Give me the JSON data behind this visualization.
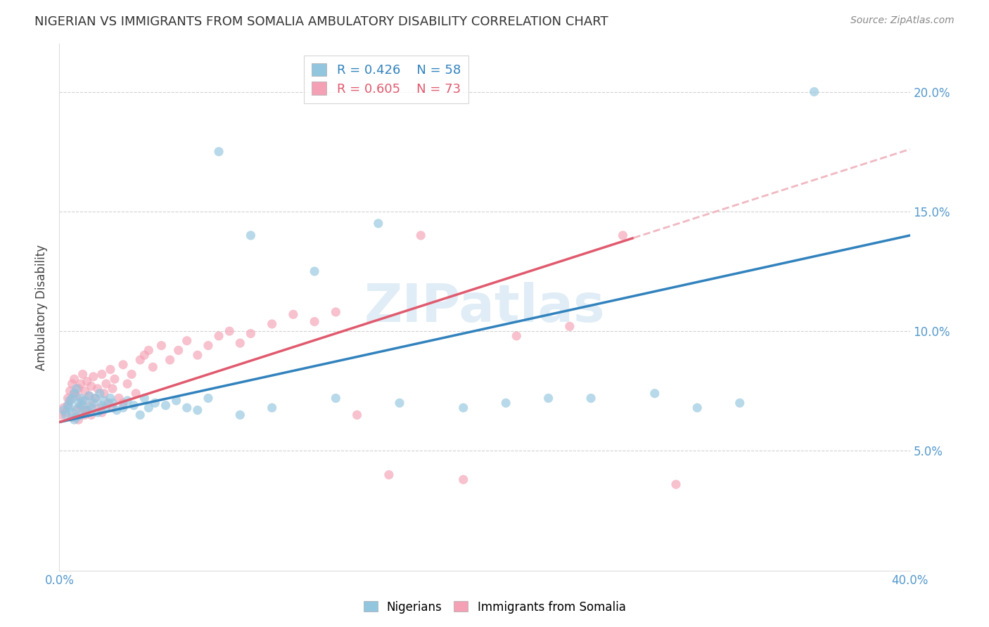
{
  "title": "NIGERIAN VS IMMIGRANTS FROM SOMALIA AMBULATORY DISABILITY CORRELATION CHART",
  "source": "Source: ZipAtlas.com",
  "ylabel": "Ambulatory Disability",
  "watermark": "ZIPatlas",
  "xmin": 0.0,
  "xmax": 0.4,
  "ymin": 0.0,
  "ymax": 0.22,
  "nigerians_R": 0.426,
  "nigerians_N": 58,
  "somalia_R": 0.605,
  "somalia_N": 73,
  "blue_scatter_color": "#92c5de",
  "pink_scatter_color": "#f4a0b5",
  "blue_line_color": "#3182bd",
  "pink_line_color": "#e05a6e",
  "blue_dash_color": "#b0cfe8",
  "pink_dash_color": "#f0b8c2",
  "axis_tick_color": "#5599cc",
  "grid_color": "#cccccc",
  "title_color": "#333333",
  "watermark_color": "#c8dff0",
  "nigeria_intercept": 0.062,
  "nigeria_slope": 0.2,
  "somalia_intercept": 0.062,
  "somalia_slope": 0.3,
  "nigeria_x": [
    0.002,
    0.003,
    0.004,
    0.005,
    0.005,
    0.006,
    0.006,
    0.007,
    0.007,
    0.008,
    0.008,
    0.009,
    0.009,
    0.01,
    0.01,
    0.011,
    0.012,
    0.013,
    0.014,
    0.015,
    0.016,
    0.017,
    0.018,
    0.019,
    0.02,
    0.021,
    0.022,
    0.024,
    0.025,
    0.027,
    0.03,
    0.032,
    0.035,
    0.038,
    0.04,
    0.042,
    0.045,
    0.05,
    0.055,
    0.06,
    0.065,
    0.07,
    0.075,
    0.085,
    0.09,
    0.1,
    0.12,
    0.13,
    0.15,
    0.16,
    0.19,
    0.21,
    0.23,
    0.25,
    0.28,
    0.3,
    0.32,
    0.355
  ],
  "nigeria_y": [
    0.067,
    0.065,
    0.069,
    0.071,
    0.068,
    0.072,
    0.066,
    0.074,
    0.063,
    0.076,
    0.064,
    0.07,
    0.068,
    0.072,
    0.065,
    0.069,
    0.071,
    0.067,
    0.073,
    0.068,
    0.07,
    0.072,
    0.066,
    0.074,
    0.069,
    0.071,
    0.068,
    0.072,
    0.07,
    0.067,
    0.068,
    0.071,
    0.069,
    0.065,
    0.072,
    0.068,
    0.07,
    0.069,
    0.071,
    0.068,
    0.067,
    0.072,
    0.175,
    0.065,
    0.14,
    0.068,
    0.125,
    0.072,
    0.145,
    0.07,
    0.068,
    0.07,
    0.072,
    0.072,
    0.074,
    0.068,
    0.07,
    0.2
  ],
  "somalia_x": [
    0.001,
    0.002,
    0.003,
    0.004,
    0.004,
    0.005,
    0.005,
    0.006,
    0.006,
    0.007,
    0.007,
    0.008,
    0.008,
    0.009,
    0.009,
    0.01,
    0.01,
    0.011,
    0.011,
    0.012,
    0.012,
    0.013,
    0.014,
    0.015,
    0.015,
    0.016,
    0.017,
    0.018,
    0.019,
    0.02,
    0.021,
    0.022,
    0.023,
    0.024,
    0.025,
    0.026,
    0.028,
    0.03,
    0.032,
    0.034,
    0.036,
    0.038,
    0.04,
    0.042,
    0.044,
    0.048,
    0.052,
    0.056,
    0.06,
    0.065,
    0.07,
    0.075,
    0.08,
    0.085,
    0.09,
    0.1,
    0.11,
    0.12,
    0.13,
    0.14,
    0.155,
    0.17,
    0.19,
    0.215,
    0.24,
    0.265,
    0.29,
    0.012,
    0.013,
    0.015,
    0.02,
    0.025,
    0.03
  ],
  "somalia_y": [
    0.065,
    0.068,
    0.066,
    0.072,
    0.069,
    0.075,
    0.071,
    0.078,
    0.064,
    0.074,
    0.08,
    0.067,
    0.073,
    0.076,
    0.063,
    0.078,
    0.069,
    0.082,
    0.071,
    0.075,
    0.067,
    0.079,
    0.073,
    0.077,
    0.065,
    0.081,
    0.072,
    0.076,
    0.068,
    0.082,
    0.074,
    0.078,
    0.07,
    0.084,
    0.076,
    0.08,
    0.072,
    0.086,
    0.078,
    0.082,
    0.074,
    0.088,
    0.09,
    0.092,
    0.085,
    0.094,
    0.088,
    0.092,
    0.096,
    0.09,
    0.094,
    0.098,
    0.1,
    0.095,
    0.099,
    0.103,
    0.107,
    0.104,
    0.108,
    0.065,
    0.04,
    0.14,
    0.038,
    0.098,
    0.102,
    0.14,
    0.036,
    0.065,
    0.067,
    0.069,
    0.066,
    0.068,
    0.07
  ]
}
